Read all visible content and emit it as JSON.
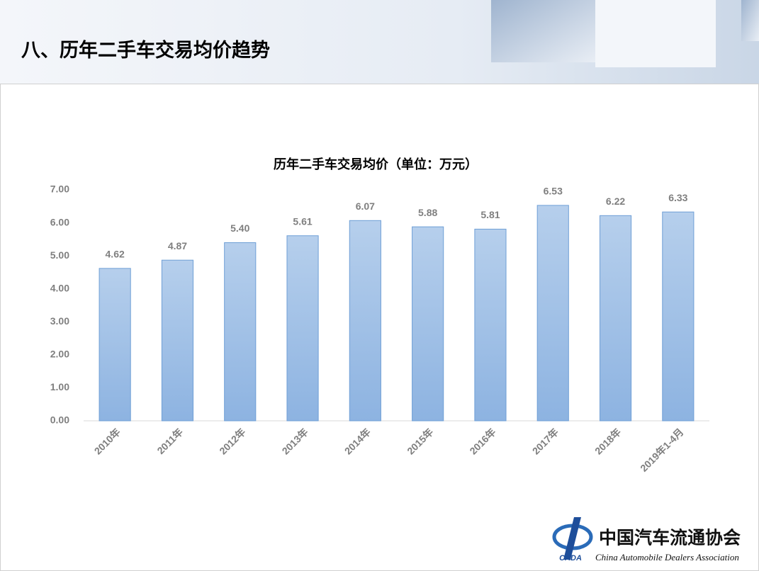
{
  "header": {
    "title": "八、历年二手车交易均价趋势"
  },
  "chart_data": {
    "type": "bar",
    "title": "历年二手车交易均价（单位：万元）",
    "categories": [
      "2010年",
      "2011年",
      "2012年",
      "2013年",
      "2014年",
      "2015年",
      "2016年",
      "2017年",
      "2018年",
      "2019年1-4月"
    ],
    "values": [
      4.62,
      4.87,
      5.4,
      5.61,
      6.07,
      5.88,
      5.81,
      6.53,
      6.22,
      6.33
    ],
    "value_labels": [
      "4.62",
      "4.87",
      "5.40",
      "5.61",
      "6.07",
      "5.88",
      "5.81",
      "6.53",
      "6.22",
      "6.33"
    ],
    "color": "#9fbfe6",
    "ylim": [
      0,
      7
    ],
    "yticks": [
      {
        "value": 0,
        "label": "0.00"
      },
      {
        "value": 1,
        "label": "1.00"
      },
      {
        "value": 2,
        "label": "2.00"
      },
      {
        "value": 3,
        "label": "3.00"
      },
      {
        "value": 4,
        "label": "4.00"
      },
      {
        "value": 5,
        "label": "5.00"
      },
      {
        "value": 6,
        "label": "6.00"
      },
      {
        "value": 7,
        "label": "7.00"
      }
    ],
    "grid": false
  },
  "logo": {
    "name": "中国汽车流通协会",
    "english": "China Automobile Dealers Association",
    "abbr": "CADA"
  }
}
